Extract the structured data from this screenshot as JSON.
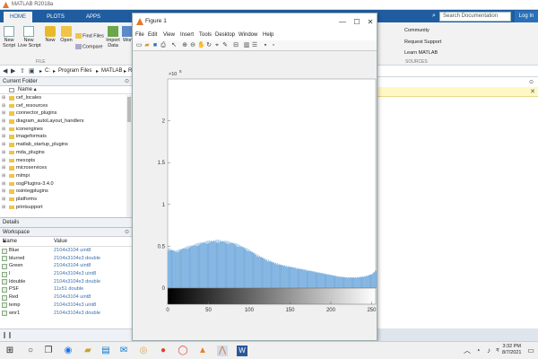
{
  "app": {
    "title": "MATLAB R2018a"
  },
  "ribbon": {
    "tabs": [
      "HOME",
      "PLOTS",
      "APPS"
    ],
    "search_placeholder": "Search Documentation",
    "login": "Log In",
    "buttons": {
      "new_script": "New\nScript",
      "new_live_script": "New\nLive Script",
      "new": "New",
      "open": "Open",
      "find_files": "Find Files",
      "compare": "Compare",
      "import_data": "Import\nData",
      "workspace_partial": "Wor"
    },
    "file_section": "FILE",
    "resources": [
      "Community",
      "Request Support",
      "Learn MATLAB"
    ],
    "resources_section": "SOURCES"
  },
  "address": {
    "crumbs": [
      "C:",
      "Program Files",
      "MATLAB",
      "R"
    ]
  },
  "current_folder": {
    "title": "Current Folder",
    "column": "Name",
    "items": [
      "cef_locales",
      "cef_resources",
      "connector_plugins",
      "diagram_autoLayout_handlers",
      "iconengines",
      "imageformats",
      "matlab_startup_plugins",
      "mda_plugins",
      "mexopts",
      "microservices",
      "mlmpi",
      "osgPlugins-3.4.0",
      "osintegplugins",
      "platforms",
      "printsupport"
    ]
  },
  "details": {
    "label": "Details"
  },
  "workspace": {
    "title": "Workspace",
    "col_name": "Name",
    "col_value": "Value",
    "vars": [
      {
        "name": "Blue",
        "value": "2104x3104 uint8"
      },
      {
        "name": "blurred",
        "value": "2104x3104x3 double"
      },
      {
        "name": "Green",
        "value": "2104x3104 uint8"
      },
      {
        "name": "I",
        "value": "2104x3104x3 uint8"
      },
      {
        "name": "Idouble",
        "value": "2104x3104x3 double"
      },
      {
        "name": "PSF",
        "value": "11x51 double"
      },
      {
        "name": "Red",
        "value": "2104x3104 uint8"
      },
      {
        "name": "temp",
        "value": "2104x3104x3 uint8"
      },
      {
        "name": "wnr1",
        "value": "2104x3104x3 double"
      }
    ]
  },
  "figure": {
    "title": "Figure 1",
    "menu": [
      "File",
      "Edit",
      "View",
      "Insert",
      "Tools",
      "Desktop",
      "Window",
      "Help"
    ],
    "controls": {
      "minimize": "—",
      "maximize": "☐",
      "close": "✕"
    }
  },
  "chart_data": {
    "type": "bar",
    "title": "",
    "xlabel": "",
    "ylabel": "",
    "exponent_label": "×10",
    "exponent_power": "5",
    "xlim": [
      0,
      255
    ],
    "ylim": [
      0,
      250000
    ],
    "xticks": [
      0,
      50,
      100,
      150,
      200,
      250
    ],
    "yticks": [
      0,
      50000,
      100000,
      150000,
      200000
    ],
    "ytick_labels": [
      "0",
      "0.5",
      "1",
      "1.5",
      "2"
    ],
    "bar_color": "#6fa8dc",
    "colorbar": "grayscale 0 to 255",
    "x": [
      0,
      10,
      20,
      30,
      40,
      50,
      60,
      70,
      80,
      90,
      100,
      110,
      120,
      130,
      140,
      150,
      160,
      170,
      180,
      190,
      200,
      210,
      220,
      230,
      240,
      250,
      255
    ],
    "values": [
      48000,
      45000,
      49000,
      52000,
      55000,
      57000,
      58000,
      57000,
      55000,
      51000,
      46000,
      40000,
      35000,
      31000,
      28000,
      26000,
      24000,
      22000,
      20000,
      18000,
      16000,
      14000,
      13000,
      13000,
      14000,
      17000,
      22000
    ]
  },
  "taskbar": {
    "time": "3:32 PM",
    "date": "8/7/2021"
  }
}
